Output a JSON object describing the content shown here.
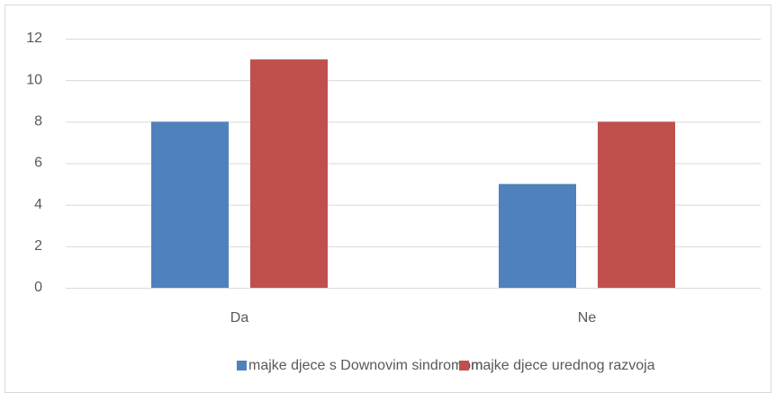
{
  "chart_data": {
    "type": "bar",
    "categories": [
      "Da",
      "Ne"
    ],
    "series": [
      {
        "name": "majke djece s Downovim sindromom",
        "color": "#4f81bd",
        "values": [
          8,
          5
        ]
      },
      {
        "name": "majke djece urednog razvoja",
        "color": "#c0504d",
        "values": [
          11,
          8
        ]
      }
    ],
    "ylim": [
      0,
      12
    ],
    "yticks": [
      0,
      2,
      4,
      6,
      8,
      10,
      12
    ],
    "grid": true,
    "legend": "bottom"
  }
}
